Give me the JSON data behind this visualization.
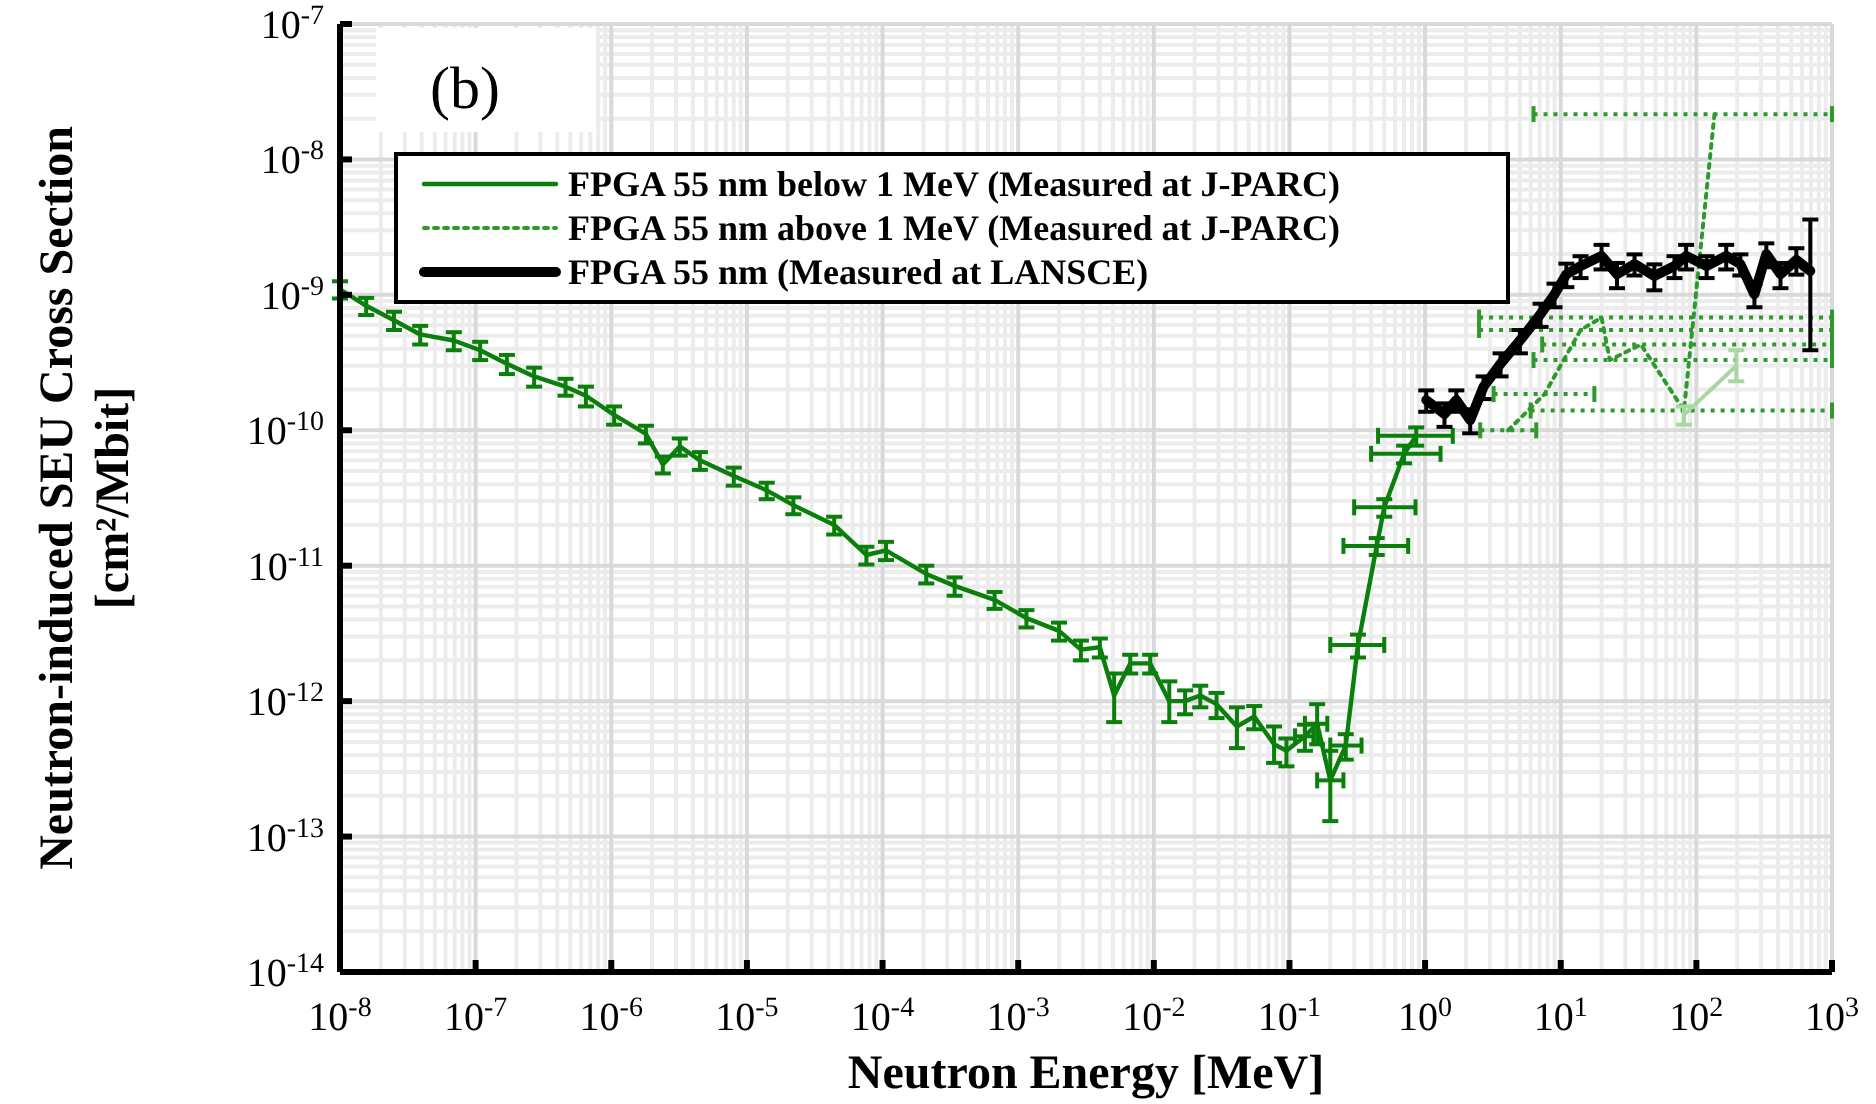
{
  "chart_data": {
    "type": "line",
    "xlabel": "Neutron Energy [MeV]",
    "ylabel": "Neutron-induced SEU Cross Section\n[cm²/Mbit]",
    "annotations": [
      "(b)"
    ],
    "log": "xy",
    "grid": true,
    "legend": "top left",
    "marker": "none",
    "xlim": [
      1e-08,
      1000
    ],
    "ylim": [
      1e-14,
      1e-07
    ],
    "xticks": [
      {
        "value": 1e-08,
        "label": "10$^{-8}$"
      },
      {
        "value": 1e-07,
        "label": "10$^{-7}$"
      },
      {
        "value": 1e-06,
        "label": "10$^{-6}$"
      },
      {
        "value": 1e-05,
        "label": "10$^{-5}$"
      },
      {
        "value": 0.0001,
        "label": "10$^{-4}$"
      },
      {
        "value": 0.001,
        "label": "10$^{-3}$"
      },
      {
        "value": 0.01,
        "label": "10$^{-2}$"
      },
      {
        "value": 0.1,
        "label": "10$^{-1}$"
      },
      {
        "value": 1,
        "label": "10$^{0}$"
      },
      {
        "value": 10,
        "label": "10$^{1}$"
      },
      {
        "value": 100,
        "label": "10$^{2}$"
      },
      {
        "value": 1000,
        "label": "10$^{3}$"
      }
    ],
    "yticks": [
      {
        "value": 1e-14,
        "label": "10$^{-14}$"
      },
      {
        "value": 1e-13,
        "label": "10$^{-13}$"
      },
      {
        "value": 1e-12,
        "label": "10$^{-12}$"
      },
      {
        "value": 1e-11,
        "label": "10$^{-11}$"
      },
      {
        "value": 1e-10,
        "label": "10$^{-10}$"
      },
      {
        "value": 1e-09,
        "label": "10$^{-9}$"
      },
      {
        "value": 1e-08,
        "label": "10$^{-8}$"
      },
      {
        "value": 1e-07,
        "label": "10$^{-7}$"
      }
    ],
    "series": [
      {
        "name": "FPGA 55 nm below 1 MeV (Measured at J-PARC)",
        "color": "#0b7f0b",
        "line_style": "solid",
        "x": [
          1e-08,
          1.56e-08,
          2.5e-08,
          3.9e-08,
          6.9e-08,
          1.08e-07,
          1.7e-07,
          2.7e-07,
          4.6e-07,
          6.5e-07,
          1.05e-06,
          1.8e-06,
          2.4e-06,
          3.2e-06,
          4.5e-06,
          8e-06,
          1.4e-05,
          2.2e-05,
          4.4e-05,
          7.6e-05,
          0.000106,
          0.00021,
          0.00034,
          0.00067,
          0.00115,
          0.002,
          0.0029,
          0.004,
          0.0051,
          0.0067,
          0.0094,
          0.013,
          0.017,
          0.022,
          0.029,
          0.041,
          0.055,
          0.077,
          0.095,
          0.13,
          0.16,
          0.2,
          0.26,
          0.32,
          0.44,
          0.5,
          0.7,
          0.86
        ],
        "values": [
          1.1e-09,
          8.3e-10,
          6.5e-10,
          5.1e-10,
          4.6e-10,
          3.9e-10,
          3.1e-10,
          2.5e-10,
          2.1e-10,
          1.8e-10,
          1.3e-10,
          9.4e-11,
          5.6e-11,
          7.6e-11,
          6e-11,
          4.6e-11,
          3.6e-11,
          2.8e-11,
          2e-11,
          1.2e-11,
          1.3e-11,
          8.7e-12,
          7.1e-12,
          5.6e-12,
          4.1e-12,
          3.3e-12,
          2.4e-12,
          2.5e-12,
          1.1e-12,
          1.9e-12,
          1.9e-12,
          1e-12,
          1e-12,
          1.1e-12,
          9.5e-13,
          6.5e-13,
          7.7e-13,
          4.8e-13,
          4.3e-13,
          5.5e-13,
          6.8e-13,
          2.6e-13,
          4.7e-13,
          2.6e-12,
          1.4e-11,
          2.7e-11,
          6.7e-11,
          9.1e-11
        ],
        "errors": [
          1.6e-10,
          1.2e-10,
          1e-10,
          8e-11,
          7e-11,
          6e-11,
          5e-11,
          4e-11,
          3e-11,
          3e-11,
          2e-11,
          1.4e-11,
          8e-12,
          1.1e-11,
          9e-12,
          7e-12,
          5e-12,
          4e-12,
          3e-12,
          1.8e-12,
          2e-12,
          1.3e-12,
          1.1e-12,
          8e-13,
          6e-13,
          5e-13,
          4e-13,
          4e-13,
          [
            7e-13,
            1.6e-12
          ],
          3e-13,
          3e-13,
          [
            7e-13,
            1.4e-12
          ],
          2e-13,
          2e-13,
          2e-13,
          [
            4.5e-13,
            9e-13
          ],
          1.5e-13,
          [
            3.5e-13,
            6.5e-13
          ],
          1e-13,
          1.2e-13,
          [
            4.8e-13,
            9.5e-13
          ],
          [
            1.3e-13,
            4.3e-13
          ],
          1e-13,
          5e-13,
          2e-12,
          4e-12,
          1e-11,
          1.4e-11
        ],
        "xerrors": [
          null,
          null,
          null,
          null,
          null,
          null,
          null,
          null,
          null,
          null,
          null,
          null,
          null,
          null,
          null,
          null,
          null,
          null,
          null,
          null,
          null,
          null,
          null,
          null,
          null,
          null,
          null,
          null,
          null,
          null,
          null,
          null,
          null,
          null,
          null,
          null,
          null,
          null,
          null,
          [
            0.11,
            0.15
          ],
          [
            0.13,
            0.19
          ],
          [
            0.16,
            0.25
          ],
          [
            0.2,
            0.34
          ],
          [
            0.2,
            0.5
          ],
          [
            0.25,
            0.75
          ],
          [
            0.3,
            0.85
          ],
          [
            0.4,
            1.3
          ],
          [
            0.45,
            1.6
          ]
        ]
      },
      {
        "name": "FPGA 55 nm above 1 MeV (Measured at J-PARC)",
        "color": "#2e9a2e",
        "line_style": "dotted",
        "x": [
          4.1,
          7.6,
          14,
          20,
          23,
          39,
          81,
          136
        ],
        "values": [
          1e-10,
          1.85e-10,
          5.5e-10,
          6.8e-10,
          3.3e-10,
          4.3e-10,
          1.4e-10,
          2.16e-08
        ],
        "xerrors": [
          [
            2.55,
            6.6
          ],
          [
            3.2,
            17.7
          ],
          [
            2.5,
            1000
          ],
          [
            2.5,
            1000
          ],
          [
            6.3,
            1000
          ],
          [
            7.3,
            1000
          ],
          [
            6.0,
            1000
          ],
          [
            6.3,
            1000
          ]
        ]
      },
      {
        "name": "FPGA 55 nm (Measured at LANSCE)",
        "color": "#000000",
        "line_style": "solid",
        "x": [
          1.02,
          1.39,
          1.7,
          2.15,
          2.7,
          3.6,
          5.0,
          7.1,
          9.0,
          11,
          14,
          20,
          26,
          35,
          49,
          69,
          84,
          119,
          166,
          211,
          268,
          328,
          417,
          546,
          692
        ],
        "values": [
          1.67e-10,
          1.32e-10,
          1.67e-10,
          1.19e-10,
          2.1e-10,
          3.1e-10,
          4.6e-10,
          7.2e-10,
          1.01e-09,
          1.42e-09,
          1.63e-09,
          1.94e-09,
          1.42e-09,
          1.69e-09,
          1.38e-09,
          1.63e-09,
          1.94e-09,
          1.63e-09,
          1.94e-09,
          1.69e-09,
          1.01e-09,
          2e-09,
          1.42e-09,
          1.81e-09,
          1.5e-09
        ],
        "errors": [
          3e-11,
          2.6e-11,
          3e-11,
          2.4e-11,
          4e-11,
          6e-11,
          9e-11,
          1.4e-10,
          2e-10,
          2.8e-10,
          3e-10,
          4e-10,
          3e-10,
          3e-10,
          3e-10,
          3e-10,
          4e-10,
          3e-10,
          4e-10,
          3e-10,
          2e-10,
          4e-10,
          3e-10,
          4e-10,
          [
            3.9e-10,
            3.6e-09
          ]
        ]
      },
      {
        "color": "#a8d8a0",
        "line_style": "solid",
        "x": [
          81,
          197
        ],
        "values": [
          1.3e-10,
          3e-10
        ],
        "errors": [
          [
            1.1e-10,
            1.5e-10
          ],
          [
            2.3e-10,
            3.9e-10
          ]
        ]
      }
    ]
  }
}
